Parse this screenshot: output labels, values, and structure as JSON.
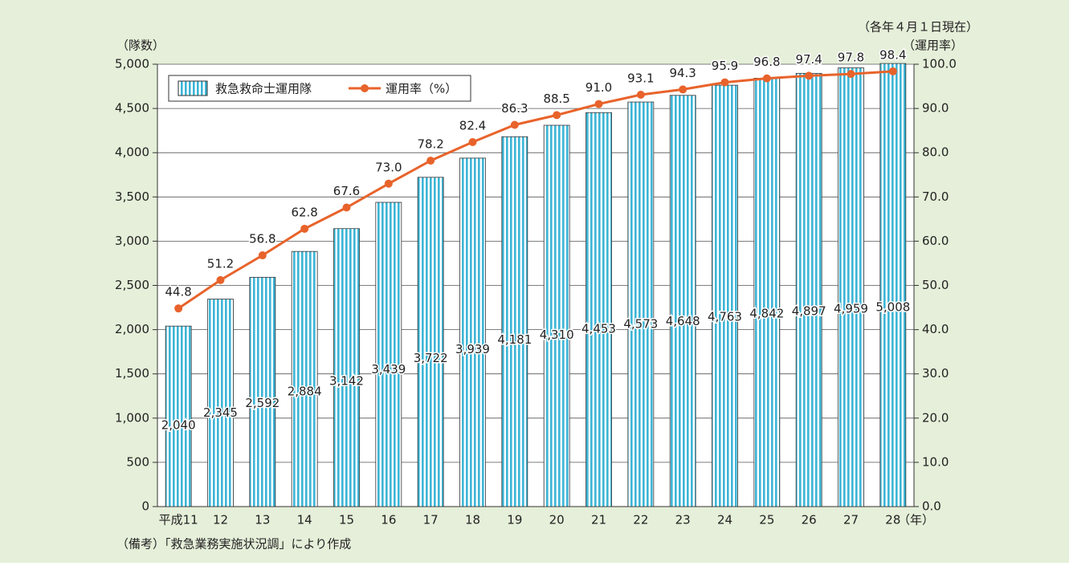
{
  "chart_data": {
    "type": "bar",
    "note": "（各年４月１日現在）",
    "ylabel": "（隊数）",
    "y2label": "（運用率）",
    "xlabel": "（年）",
    "source": "（備考）「救急業務実施状況調」により作成",
    "categories": [
      "平成11",
      "12",
      "13",
      "14",
      "15",
      "16",
      "17",
      "18",
      "19",
      "20",
      "21",
      "22",
      "23",
      "24",
      "25",
      "26",
      "27",
      "28"
    ],
    "series": [
      {
        "name": "救急救命士運用隊",
        "type": "bar",
        "color": "#3db5d6",
        "values": [
          2040,
          2345,
          2592,
          2884,
          3142,
          3439,
          3722,
          3939,
          4181,
          4310,
          4453,
          4573,
          4648,
          4763,
          4842,
          4897,
          4959,
          5008
        ],
        "value_labels": [
          "2,040",
          "2,345",
          "2,592",
          "2,884",
          "3,142",
          "3,439",
          "3,722",
          "3,939",
          "4,181",
          "4,310",
          "4,453",
          "4,573",
          "4,648",
          "4,763",
          "4,842",
          "4,897",
          "4,959",
          "5,008"
        ]
      },
      {
        "name": "運用率（%）",
        "type": "line",
        "axis": "y2",
        "color": "#e8632b",
        "values": [
          44.8,
          51.2,
          56.8,
          62.8,
          67.6,
          73.0,
          78.2,
          82.4,
          86.3,
          88.5,
          91.0,
          93.1,
          94.3,
          95.9,
          96.8,
          97.4,
          97.8,
          98.4
        ],
        "value_labels": [
          "44.8",
          "51.2",
          "56.8",
          "62.8",
          "67.6",
          "73.0",
          "78.2",
          "82.4",
          "86.3",
          "88.5",
          "91.0",
          "93.1",
          "94.3",
          "95.9",
          "96.8",
          "97.4",
          "97.8",
          "98.4"
        ]
      }
    ],
    "ylim": [
      0,
      5000
    ],
    "yticks": [
      0,
      500,
      {
        "value": 1000,
        "label": "1,000"
      },
      {
        "value": 1500,
        "label": "1,500"
      },
      {
        "value": 2000,
        "label": "2,000"
      },
      {
        "value": 2500,
        "label": "2,500"
      },
      {
        "value": 3000,
        "label": "3,000"
      },
      {
        "value": 3500,
        "label": "3,500"
      },
      {
        "value": 4000,
        "label": "4,000"
      },
      {
        "value": 4500,
        "label": "4,500"
      },
      {
        "value": 5000,
        "label": "5,000"
      }
    ],
    "y2lim": [
      0,
      100
    ],
    "y2ticks": [
      {
        "value": 0,
        "label": "0.0"
      },
      {
        "value": 10,
        "label": "10.0"
      },
      {
        "value": 20,
        "label": "20.0"
      },
      {
        "value": 30,
        "label": "30.0"
      },
      {
        "value": 40,
        "label": "40.0"
      },
      {
        "value": 50,
        "label": "50.0"
      },
      {
        "value": 60,
        "label": "60.0"
      },
      {
        "value": 70,
        "label": "70.0"
      },
      {
        "value": 80,
        "label": "80.0"
      },
      {
        "value": 90,
        "label": "90.0"
      },
      {
        "value": 100,
        "label": "100.0"
      }
    ],
    "grid": true,
    "legend": "top-left"
  }
}
